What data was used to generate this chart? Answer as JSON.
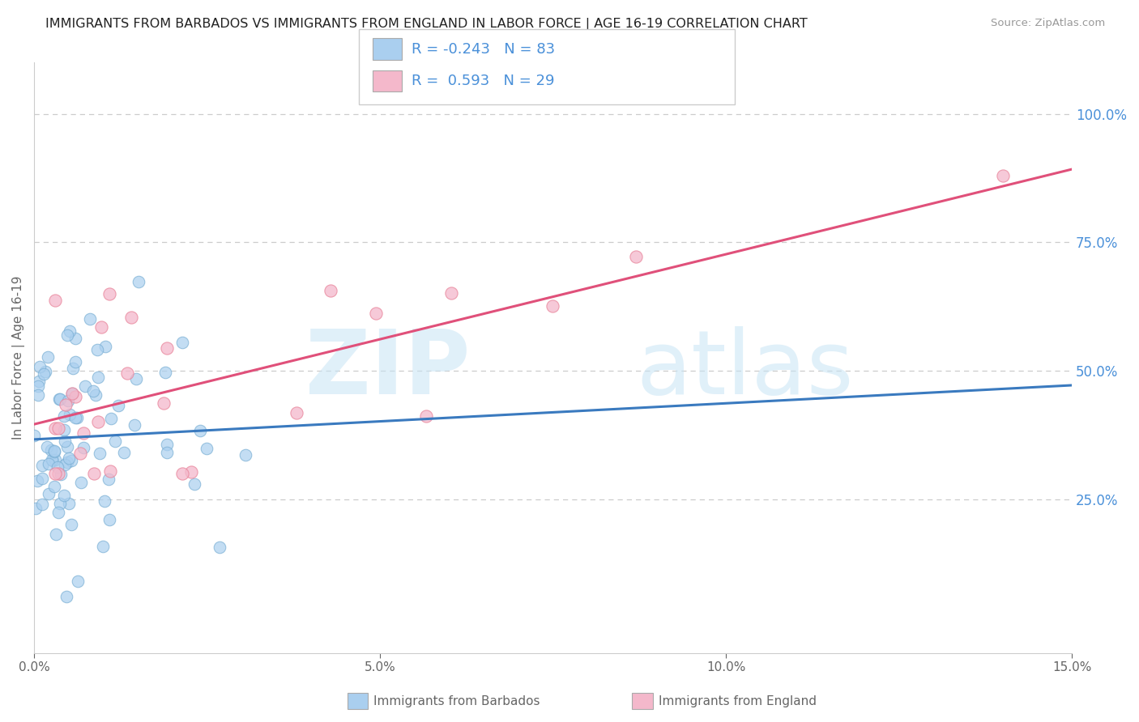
{
  "title": "IMMIGRANTS FROM BARBADOS VS IMMIGRANTS FROM ENGLAND IN LABOR FORCE | AGE 16-19 CORRELATION CHART",
  "source": "Source: ZipAtlas.com",
  "ylabel": "In Labor Force | Age 16-19",
  "xlim": [
    0.0,
    0.15
  ],
  "ylim": [
    -0.05,
    1.1
  ],
  "plot_ylim": [
    -0.05,
    1.1
  ],
  "xticks": [
    0.0,
    0.05,
    0.1,
    0.15
  ],
  "xtick_labels": [
    "0.0%",
    "5.0%",
    "10.0%",
    "15.0%"
  ],
  "yticks_right": [
    0.25,
    0.5,
    0.75,
    1.0
  ],
  "ytick_labels_right": [
    "25.0%",
    "50.0%",
    "75.0%",
    "100.0%"
  ],
  "R_barbados": -0.243,
  "N_barbados": 83,
  "R_england": 0.593,
  "N_england": 29,
  "barbados_color": "#aacfef",
  "england_color": "#f4b8cb",
  "barbados_edge_color": "#7aafd4",
  "england_edge_color": "#e8849a",
  "barbados_line_color": "#3a7abf",
  "england_line_color": "#e0507a",
  "title_color": "#222222",
  "axis_color": "#666666",
  "right_axis_color": "#4a90d9",
  "grid_color": "#cccccc",
  "background_color": "#ffffff",
  "legend_barbados": "Immigrants from Barbados",
  "legend_england": "Immigrants from England"
}
